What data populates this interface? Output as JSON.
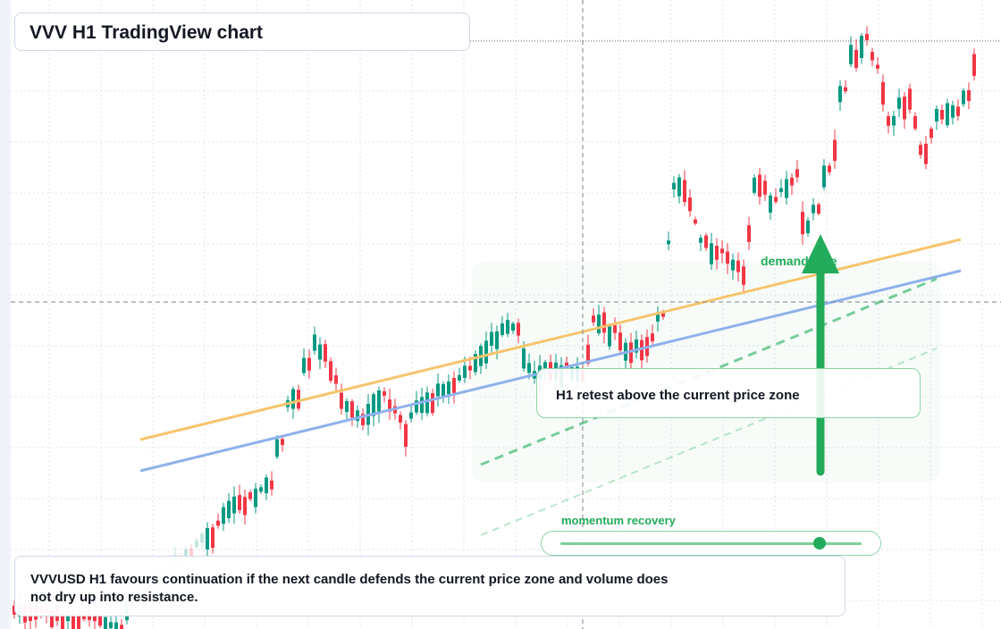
{
  "title": "VVV H1 TradingView chart",
  "callout": "H1 retest above the current price zone",
  "zone_label": "demand side",
  "momentum": {
    "label": "momentum recovery",
    "level": 0.86
  },
  "note": "VVVUSD H1 favours continuation if the next candle defends the current price zone and volume does not dry up into resistance.",
  "colors": {
    "up": "#089981",
    "down": "#f23645",
    "accent_green": "#22ab5a",
    "trend_orange": "#f7c46c",
    "trend_blue": "#8fb1ec",
    "grid": "#e0e3eb"
  },
  "chart_data": {
    "type": "candlestick",
    "timeframe": "H1",
    "symbol": "VVVUSD",
    "candle_count": 130,
    "seed": 7,
    "trend": "up",
    "grid": true
  }
}
